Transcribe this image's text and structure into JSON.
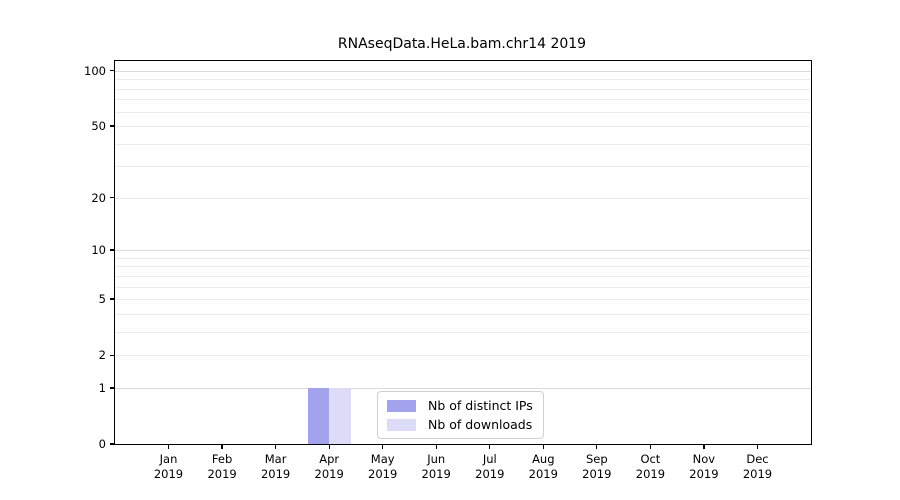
{
  "chart_data": {
    "type": "bar",
    "title": "RNAseqData.HeLa.bam.chr14 2019",
    "categories": [
      "Jan",
      "Feb",
      "Mar",
      "Apr",
      "May",
      "Jun",
      "Jul",
      "Aug",
      "Sep",
      "Oct",
      "Nov",
      "Dec"
    ],
    "category_year": "2019",
    "series": [
      {
        "name": "Nb of distinct IPs",
        "color": "#a2a2ed",
        "values": [
          0,
          0,
          0,
          1,
          0,
          0,
          0,
          0,
          0,
          0,
          0,
          0
        ]
      },
      {
        "name": "Nb of downloads",
        "color": "#dcdcf9",
        "values": [
          0,
          0,
          0,
          1,
          0,
          0,
          0,
          0,
          0,
          0,
          0,
          0
        ]
      }
    ],
    "yscale": "log1p",
    "ylim": [
      0,
      113
    ],
    "ytick_values": [
      0,
      1,
      2,
      5,
      10,
      20,
      50,
      100
    ],
    "gridlines": {
      "major": [
        1,
        10,
        100
      ],
      "minor": [
        2,
        3,
        4,
        5,
        6,
        7,
        8,
        9,
        20,
        30,
        40,
        50,
        60,
        70,
        80,
        90
      ]
    },
    "legend": {
      "position": "lower center"
    },
    "xlabel": "",
    "ylabel": ""
  }
}
